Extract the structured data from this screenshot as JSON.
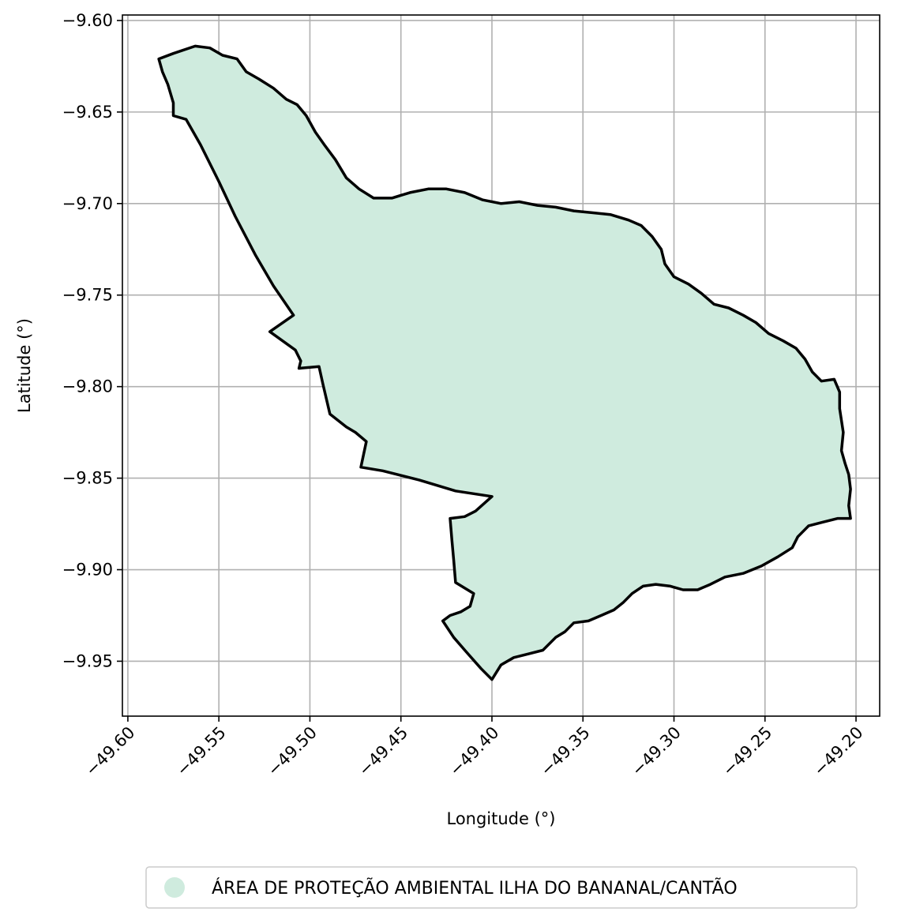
{
  "chart_data": {
    "type": "map",
    "xlabel": "Longitude (°)",
    "ylabel": "Latitude (°)",
    "xlim": [
      -49.603,
      -49.187
    ],
    "ylim": [
      -9.98,
      -9.597
    ],
    "xticks": [
      -49.6,
      -49.55,
      -49.5,
      -49.45,
      -49.4,
      -49.35,
      -49.3,
      -49.25,
      -49.2
    ],
    "xtick_labels": [
      "−49.60",
      "−49.55",
      "−49.50",
      "−49.45",
      "−49.40",
      "−49.35",
      "−49.30",
      "−49.25",
      "−49.20"
    ],
    "yticks": [
      -9.6,
      -9.65,
      -9.7,
      -9.75,
      -9.8,
      -9.85,
      -9.9,
      -9.95
    ],
    "ytick_labels": [
      "−9.60",
      "−9.65",
      "−9.70",
      "−9.75",
      "−9.80",
      "−9.85",
      "−9.90",
      "−9.95"
    ],
    "grid": true,
    "legend_position": "bottom-center",
    "series": [
      {
        "name": "ÁREA DE PROTEÇÃO AMBIENTAL ILHA DO BANANAL/CANTÃO",
        "fill_color": "#cfebde",
        "edge_color": "#000000",
        "boundary": [
          [
            -49.583,
            -9.621
          ],
          [
            -49.575,
            -9.618
          ],
          [
            -49.563,
            -9.614
          ],
          [
            -49.555,
            -9.615
          ],
          [
            -49.548,
            -9.619
          ],
          [
            -49.54,
            -9.621
          ],
          [
            -49.535,
            -9.628
          ],
          [
            -49.528,
            -9.632
          ],
          [
            -49.52,
            -9.637
          ],
          [
            -49.513,
            -9.643
          ],
          [
            -49.507,
            -9.646
          ],
          [
            -49.502,
            -9.652
          ],
          [
            -49.497,
            -9.661
          ],
          [
            -49.492,
            -9.668
          ],
          [
            -49.486,
            -9.676
          ],
          [
            -49.48,
            -9.686
          ],
          [
            -49.473,
            -9.692
          ],
          [
            -49.465,
            -9.697
          ],
          [
            -49.455,
            -9.697
          ],
          [
            -49.445,
            -9.694
          ],
          [
            -49.435,
            -9.692
          ],
          [
            -49.425,
            -9.692
          ],
          [
            -49.415,
            -9.694
          ],
          [
            -49.405,
            -9.698
          ],
          [
            -49.395,
            -9.7
          ],
          [
            -49.385,
            -9.699
          ],
          [
            -49.375,
            -9.701
          ],
          [
            -49.365,
            -9.702
          ],
          [
            -49.355,
            -9.704
          ],
          [
            -49.345,
            -9.705
          ],
          [
            -49.335,
            -9.706
          ],
          [
            -49.325,
            -9.709
          ],
          [
            -49.318,
            -9.712
          ],
          [
            -49.312,
            -9.718
          ],
          [
            -49.307,
            -9.725
          ],
          [
            -49.305,
            -9.733
          ],
          [
            -49.3,
            -9.74
          ],
          [
            -49.292,
            -9.744
          ],
          [
            -49.285,
            -9.749
          ],
          [
            -49.278,
            -9.755
          ],
          [
            -49.27,
            -9.757
          ],
          [
            -49.262,
            -9.761
          ],
          [
            -49.255,
            -9.765
          ],
          [
            -49.248,
            -9.771
          ],
          [
            -49.24,
            -9.775
          ],
          [
            -49.233,
            -9.779
          ],
          [
            -49.228,
            -9.785
          ],
          [
            -49.224,
            -9.792
          ],
          [
            -49.219,
            -9.797
          ],
          [
            -49.212,
            -9.796
          ],
          [
            -49.209,
            -9.803
          ],
          [
            -49.209,
            -9.812
          ],
          [
            -49.207,
            -9.825
          ],
          [
            -49.208,
            -9.835
          ],
          [
            -49.206,
            -9.842
          ],
          [
            -49.204,
            -9.848
          ],
          [
            -49.203,
            -9.856
          ],
          [
            -49.204,
            -9.865
          ],
          [
            -49.203,
            -9.872
          ],
          [
            -49.21,
            -9.872
          ],
          [
            -49.218,
            -9.874
          ],
          [
            -49.226,
            -9.876
          ],
          [
            -49.232,
            -9.882
          ],
          [
            -49.235,
            -9.888
          ],
          [
            -49.243,
            -9.893
          ],
          [
            -49.252,
            -9.898
          ],
          [
            -49.262,
            -9.902
          ],
          [
            -49.272,
            -9.904
          ],
          [
            -49.28,
            -9.908
          ],
          [
            -49.287,
            -9.911
          ],
          [
            -49.295,
            -9.911
          ],
          [
            -49.302,
            -9.909
          ],
          [
            -49.31,
            -9.908
          ],
          [
            -49.317,
            -9.909
          ],
          [
            -49.323,
            -9.913
          ],
          [
            -49.328,
            -9.918
          ],
          [
            -49.333,
            -9.922
          ],
          [
            -49.34,
            -9.925
          ],
          [
            -49.347,
            -9.928
          ],
          [
            -49.355,
            -9.929
          ],
          [
            -49.36,
            -9.934
          ],
          [
            -49.365,
            -9.937
          ],
          [
            -49.372,
            -9.944
          ],
          [
            -49.38,
            -9.946
          ],
          [
            -49.388,
            -9.948
          ],
          [
            -49.395,
            -9.952
          ],
          [
            -49.4,
            -9.96
          ],
          [
            -49.406,
            -9.954
          ],
          [
            -49.414,
            -9.945
          ],
          [
            -49.421,
            -9.937
          ],
          [
            -49.427,
            -9.928
          ],
          [
            -49.423,
            -9.925
          ],
          [
            -49.417,
            -9.923
          ],
          [
            -49.412,
            -9.92
          ],
          [
            -49.41,
            -9.913
          ],
          [
            -49.42,
            -9.907
          ],
          [
            -49.421,
            -9.895
          ],
          [
            -49.422,
            -9.884
          ],
          [
            -49.423,
            -9.872
          ],
          [
            -49.415,
            -9.871
          ],
          [
            -49.409,
            -9.868
          ],
          [
            -49.4,
            -9.86
          ],
          [
            -49.42,
            -9.857
          ],
          [
            -49.44,
            -9.851
          ],
          [
            -49.46,
            -9.846
          ],
          [
            -49.472,
            -9.844
          ],
          [
            -49.469,
            -9.83
          ],
          [
            -49.475,
            -9.825
          ],
          [
            -49.48,
            -9.822
          ],
          [
            -49.489,
            -9.815
          ],
          [
            -49.493,
            -9.798
          ],
          [
            -49.495,
            -9.789
          ],
          [
            -49.506,
            -9.79
          ],
          [
            -49.505,
            -9.786
          ],
          [
            -49.508,
            -9.78
          ],
          [
            -49.522,
            -9.77
          ],
          [
            -49.509,
            -9.761
          ],
          [
            -49.52,
            -9.745
          ],
          [
            -49.53,
            -9.728
          ],
          [
            -49.541,
            -9.707
          ],
          [
            -49.55,
            -9.688
          ],
          [
            -49.56,
            -9.668
          ],
          [
            -49.568,
            -9.654
          ],
          [
            -49.575,
            -9.652
          ],
          [
            -49.575,
            -9.645
          ],
          [
            -49.578,
            -9.635
          ],
          [
            -49.581,
            -9.628
          ],
          [
            -49.583,
            -9.621
          ]
        ]
      }
    ]
  }
}
